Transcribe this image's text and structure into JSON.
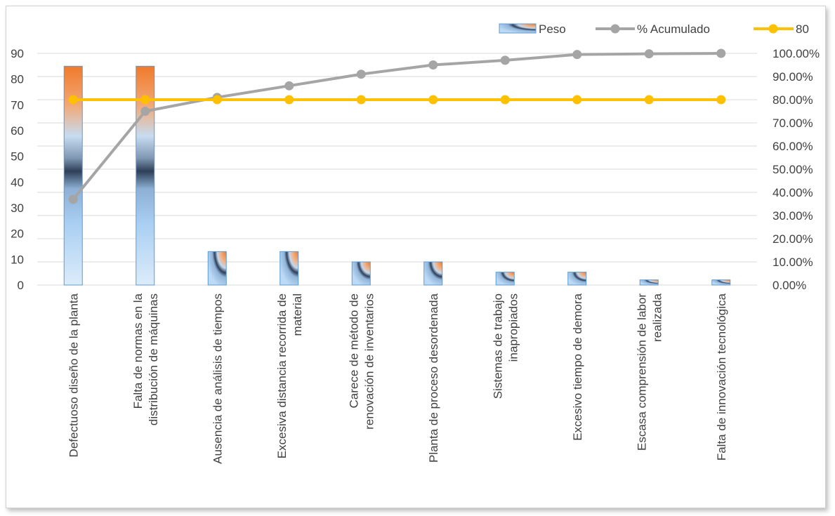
{
  "chart_data": {
    "type": "bar",
    "categories": [
      [
        "Defectuoso diseño de la planta"
      ],
      [
        "Falta de normas en la",
        "distribución de máquinas"
      ],
      [
        "Ausencia de análisis de tiempos"
      ],
      [
        "Excesiva distancia recorrida de",
        "material"
      ],
      [
        "Carece de método de",
        "renovación de inventarios"
      ],
      [
        "Planta de proceso desordenada"
      ],
      [
        "Sistemas de trabajo",
        "inapropiados"
      ],
      [
        "Excesivo tiempo de demora"
      ],
      [
        "Escasa comprensión de labor",
        "realizada"
      ],
      [
        "Falta de innovación tecnológica"
      ]
    ],
    "series": [
      {
        "name": "Peso",
        "type": "bar",
        "axis": "left",
        "values": [
          85,
          85,
          13,
          13,
          9,
          9,
          5,
          5,
          2,
          2
        ]
      },
      {
        "name": "% Acumulado",
        "type": "line",
        "axis": "right",
        "values": [
          37.0,
          75.0,
          81.0,
          86.0,
          91.0,
          95.0,
          97.0,
          99.5,
          99.8,
          100.0
        ]
      },
      {
        "name": "80",
        "type": "line",
        "axis": "right",
        "values": [
          80,
          80,
          80,
          80,
          80,
          80,
          80,
          80,
          80,
          80
        ]
      }
    ],
    "y_left": {
      "min": 0,
      "max": 90,
      "ticks": [
        "0",
        "10",
        "20",
        "30",
        "40",
        "50",
        "60",
        "70",
        "80",
        "90"
      ]
    },
    "y_right": {
      "min": 0,
      "max": 100,
      "ticks": [
        "0.00%",
        "10.00%",
        "20.00%",
        "30.00%",
        "40.00%",
        "50.00%",
        "60.00%",
        "70.00%",
        "80.00%",
        "90.00%",
        "100.00%"
      ]
    },
    "grid": true,
    "legend_position": "top-right",
    "colors": {
      "line_cum": "#a5a5a5",
      "line_80": "#ffc000",
      "bar_top": "#f58231",
      "bar_mid": "#2e3f57",
      "bar_light": "#bcd9f5",
      "bar_border": "#5b9bd5",
      "grid": "#d9d9d9",
      "text": "#404040"
    }
  }
}
